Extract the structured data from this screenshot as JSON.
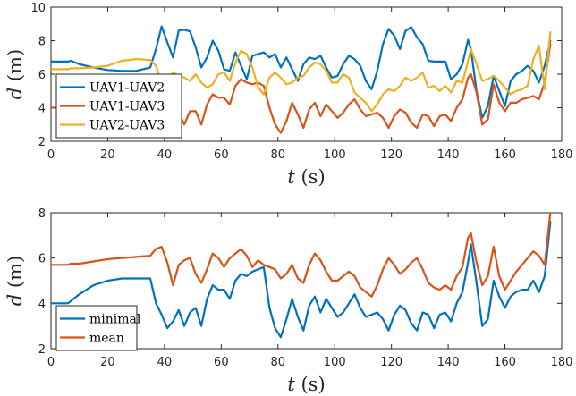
{
  "chart_data": [
    {
      "type": "line",
      "xlabel_var": "t",
      "xlabel_unit": "(s)",
      "ylabel_var": "d",
      "ylabel_unit": "(m)",
      "xlim": [
        0,
        180
      ],
      "ylim": [
        2,
        10
      ],
      "xticks": [
        0,
        20,
        40,
        60,
        80,
        100,
        120,
        140,
        160,
        180
      ],
      "yticks": [
        2,
        4,
        6,
        8,
        10
      ],
      "legend_position": "bottom-left",
      "series": [
        {
          "name": "UAV1-UAV2",
          "color": "#0072BD",
          "x": [
            0,
            6,
            7,
            10,
            15,
            20,
            25,
            30,
            35,
            37,
            39,
            41,
            43,
            45,
            47,
            49,
            51,
            53,
            55,
            57,
            59,
            61,
            63,
            65,
            67,
            69,
            71,
            73,
            75,
            77,
            79,
            81,
            83,
            85,
            87,
            89,
            91,
            93,
            95,
            97,
            99,
            101,
            103,
            105,
            107,
            109,
            111,
            113,
            115,
            117,
            119,
            121,
            123,
            125,
            127,
            129,
            131,
            133,
            135,
            137,
            139,
            141,
            143,
            145,
            147,
            148,
            150,
            152,
            154,
            156,
            158,
            160,
            162,
            164,
            166,
            168,
            170,
            172,
            174,
            176
          ],
          "y": [
            6.75,
            6.75,
            6.8,
            6.6,
            6.4,
            6.25,
            6.2,
            6.2,
            6.4,
            7.5,
            8.85,
            7.9,
            7.0,
            8.6,
            8.65,
            8.55,
            7.6,
            6.4,
            7.0,
            8.0,
            7.4,
            6.3,
            6.2,
            7.3,
            6.5,
            5.7,
            7.1,
            7.2,
            7.3,
            7.0,
            7.2,
            6.4,
            7.0,
            6.3,
            5.6,
            6.6,
            7.0,
            6.9,
            7.1,
            6.4,
            5.8,
            5.9,
            6.6,
            7.1,
            6.9,
            6.5,
            5.6,
            5.1,
            6.2,
            7.8,
            8.7,
            8.3,
            7.5,
            8.6,
            8.8,
            8.2,
            7.8,
            6.8,
            6.75,
            6.75,
            6.75,
            5.7,
            6.0,
            6.6,
            8.05,
            7.5,
            5.0,
            3.4,
            4.1,
            5.9,
            5.0,
            4.1,
            5.6,
            6.0,
            6.2,
            6.5,
            6.2,
            5.5,
            6.5,
            8.0
          ]
        },
        {
          "name": "UAV1-UAV3",
          "color": "#D95319",
          "x": [
            0,
            6,
            7,
            10,
            15,
            20,
            25,
            30,
            35,
            37,
            39,
            41,
            43,
            45,
            47,
            49,
            51,
            53,
            55,
            57,
            59,
            61,
            63,
            65,
            67,
            69,
            71,
            73,
            75,
            77,
            79,
            81,
            83,
            85,
            87,
            89,
            91,
            93,
            95,
            97,
            99,
            101,
            103,
            105,
            107,
            109,
            111,
            113,
            115,
            117,
            119,
            121,
            123,
            125,
            127,
            129,
            131,
            133,
            135,
            137,
            139,
            141,
            143,
            145,
            147,
            148,
            150,
            152,
            154,
            156,
            158,
            160,
            162,
            164,
            166,
            168,
            170,
            172,
            174,
            176
          ],
          "y": [
            4.0,
            4.0,
            4.1,
            4.4,
            4.8,
            5.0,
            5.1,
            5.1,
            5.1,
            4.0,
            3.0,
            3.1,
            3.3,
            3.7,
            3.0,
            3.8,
            3.8,
            3.0,
            4.2,
            4.8,
            4.6,
            4.6,
            4.2,
            5.3,
            5.7,
            5.5,
            5.4,
            5.5,
            5.3,
            4.0,
            3.0,
            2.5,
            3.2,
            4.3,
            3.6,
            2.8,
            3.9,
            4.3,
            3.5,
            4.2,
            3.8,
            3.4,
            3.7,
            4.2,
            4.5,
            3.9,
            3.5,
            3.6,
            3.7,
            3.4,
            2.8,
            3.5,
            3.9,
            3.7,
            3.1,
            2.8,
            3.6,
            3.5,
            2.9,
            3.5,
            3.6,
            3.2,
            4.0,
            4.5,
            5.8,
            6.0,
            4.9,
            3.0,
            3.3,
            5.4,
            4.3,
            3.8,
            4.3,
            4.3,
            4.5,
            4.6,
            4.7,
            4.5,
            5.5,
            7.8
          ]
        },
        {
          "name": "UAV2-UAV3",
          "color": "#EDB120",
          "x": [
            0,
            6,
            7,
            10,
            15,
            20,
            25,
            30,
            35,
            37,
            39,
            41,
            43,
            45,
            47,
            49,
            51,
            53,
            55,
            57,
            59,
            61,
            63,
            65,
            67,
            69,
            71,
            73,
            75,
            77,
            79,
            81,
            83,
            85,
            87,
            89,
            91,
            93,
            95,
            97,
            99,
            101,
            103,
            105,
            107,
            109,
            111,
            113,
            115,
            117,
            119,
            121,
            123,
            125,
            127,
            129,
            131,
            133,
            135,
            137,
            139,
            141,
            143,
            145,
            147,
            148,
            150,
            152,
            154,
            156,
            158,
            160,
            162,
            164,
            166,
            168,
            170,
            172,
            174,
            176
          ],
          "y": [
            6.3,
            6.3,
            6.35,
            6.35,
            6.4,
            6.5,
            6.8,
            6.9,
            6.85,
            6.5,
            5.5,
            5.7,
            6.1,
            5.9,
            5.8,
            5.6,
            6.0,
            5.5,
            5.2,
            5.4,
            6.0,
            6.1,
            5.6,
            6.7,
            7.4,
            7.2,
            6.4,
            5.2,
            4.8,
            5.8,
            6.1,
            5.8,
            5.4,
            5.5,
            5.8,
            5.9,
            6.4,
            6.7,
            6.6,
            6.2,
            5.5,
            5.5,
            6.0,
            5.8,
            4.9,
            4.6,
            4.3,
            3.8,
            4.2,
            4.8,
            5.1,
            5.0,
            5.3,
            5.8,
            5.6,
            5.8,
            6.1,
            5.2,
            5.3,
            5.0,
            5.3,
            4.9,
            5.6,
            5.5,
            6.8,
            7.5,
            6.6,
            5.6,
            5.7,
            5.9,
            5.6,
            5.2,
            4.8,
            5.0,
            5.1,
            5.3,
            6.9,
            7.7,
            5.1,
            8.5
          ]
        }
      ]
    },
    {
      "type": "line",
      "xlabel_var": "t",
      "xlabel_unit": "(s)",
      "ylabel_var": "d",
      "ylabel_unit": "(m)",
      "xlim": [
        0,
        180
      ],
      "ylim": [
        2,
        8
      ],
      "xticks": [
        0,
        20,
        40,
        60,
        80,
        100,
        120,
        140,
        160,
        180
      ],
      "yticks": [
        2,
        4,
        6,
        8
      ],
      "legend_position": "bottom-left",
      "series": [
        {
          "name": "minimal",
          "color": "#0072BD",
          "x": [
            0,
            6,
            7,
            10,
            15,
            20,
            25,
            30,
            35,
            37,
            39,
            41,
            43,
            45,
            47,
            49,
            51,
            53,
            55,
            57,
            59,
            61,
            63,
            65,
            67,
            69,
            71,
            73,
            75,
            77,
            79,
            81,
            83,
            85,
            87,
            89,
            91,
            93,
            95,
            97,
            99,
            101,
            103,
            105,
            107,
            109,
            111,
            113,
            115,
            117,
            119,
            121,
            123,
            125,
            127,
            129,
            131,
            133,
            135,
            137,
            139,
            141,
            143,
            145,
            147,
            148,
            150,
            152,
            154,
            156,
            158,
            160,
            162,
            164,
            166,
            168,
            170,
            172,
            174,
            176
          ],
          "y": [
            4.0,
            4.0,
            4.1,
            4.4,
            4.8,
            5.0,
            5.1,
            5.1,
            5.1,
            4.0,
            3.5,
            2.9,
            3.2,
            3.7,
            3.0,
            3.6,
            3.8,
            3.0,
            4.2,
            4.8,
            4.6,
            4.6,
            4.2,
            5.0,
            5.3,
            5.2,
            5.4,
            5.5,
            5.6,
            3.8,
            2.9,
            2.5,
            3.3,
            4.2,
            3.4,
            2.8,
            3.9,
            4.3,
            3.6,
            4.2,
            3.8,
            3.4,
            3.6,
            4.0,
            4.4,
            3.8,
            3.4,
            3.5,
            3.6,
            3.3,
            2.8,
            3.5,
            3.9,
            3.7,
            3.1,
            2.8,
            3.6,
            3.5,
            2.9,
            3.5,
            3.6,
            3.2,
            4.0,
            4.5,
            5.8,
            6.6,
            4.9,
            3.0,
            3.3,
            5.0,
            4.3,
            3.8,
            4.3,
            4.5,
            4.6,
            4.6,
            5.0,
            4.5,
            5.2,
            7.6
          ]
        },
        {
          "name": "mean",
          "color": "#D95319",
          "x": [
            0,
            6,
            7,
            10,
            15,
            20,
            25,
            30,
            35,
            37,
            39,
            41,
            43,
            45,
            47,
            49,
            51,
            53,
            55,
            57,
            59,
            61,
            63,
            65,
            67,
            69,
            71,
            73,
            75,
            77,
            79,
            81,
            83,
            85,
            87,
            89,
            91,
            93,
            95,
            97,
            99,
            101,
            103,
            105,
            107,
            109,
            111,
            113,
            115,
            117,
            119,
            121,
            123,
            125,
            127,
            129,
            131,
            133,
            135,
            137,
            139,
            141,
            143,
            145,
            147,
            148,
            150,
            152,
            154,
            156,
            158,
            160,
            162,
            164,
            166,
            168,
            170,
            172,
            174,
            176
          ],
          "y": [
            5.7,
            5.7,
            5.75,
            5.75,
            5.85,
            5.95,
            6.0,
            6.05,
            6.1,
            6.4,
            6.5,
            5.8,
            4.8,
            5.7,
            5.9,
            6.0,
            5.3,
            4.9,
            5.5,
            6.2,
            6.0,
            5.6,
            6.0,
            6.2,
            6.4,
            6.1,
            5.6,
            5.9,
            5.7,
            5.6,
            5.5,
            5.1,
            5.3,
            5.7,
            5.1,
            4.9,
            5.7,
            6.2,
            5.9,
            5.4,
            5.0,
            5.0,
            5.2,
            5.4,
            5.2,
            4.7,
            4.5,
            4.3,
            4.8,
            5.5,
            6.0,
            5.7,
            5.3,
            5.5,
            5.8,
            6.0,
            5.5,
            4.9,
            4.7,
            4.6,
            4.8,
            4.6,
            5.2,
            5.6,
            6.9,
            7.1,
            5.8,
            4.8,
            5.2,
            6.5,
            5.2,
            4.6,
            5.0,
            5.4,
            5.7,
            6.0,
            6.3,
            6.1,
            5.7,
            8.0
          ]
        }
      ]
    }
  ]
}
